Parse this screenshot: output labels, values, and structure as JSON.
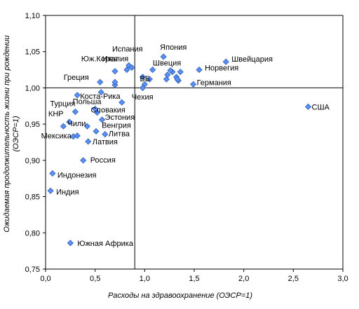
{
  "chart_data": {
    "type": "scatter",
    "xlabel": "Расходы на здравоохранение (ОЭСР=1)",
    "ylabel": "Ожидаемая продолжительность жизни при рождении (ОЭСР=1)",
    "xlim": [
      0.0,
      3.0
    ],
    "ylim": [
      0.75,
      1.1
    ],
    "x_ticks": [
      "0,0",
      "0,5",
      "1,0",
      "1,5",
      "2,0",
      "2,5",
      "3,0"
    ],
    "y_ticks": [
      "0,75",
      "0,80",
      "0,85",
      "0,90",
      "0,95",
      "1,00",
      "1,05",
      "1,10"
    ],
    "reference_lines": {
      "x": 0.9,
      "y": 1.0
    },
    "grid": false,
    "marker_color": "#5b8ff9",
    "marker_stroke": "#2f5fb0",
    "points": [
      {
        "x": 2.65,
        "y": 0.974,
        "label": "США"
      },
      {
        "x": 1.82,
        "y": 1.036,
        "label": "Швейцария"
      },
      {
        "x": 1.55,
        "y": 1.025,
        "label": "Норвегия"
      },
      {
        "x": 1.49,
        "y": 1.005,
        "label": "Германия"
      },
      {
        "x": 1.19,
        "y": 1.043,
        "label": "Япония"
      },
      {
        "x": 1.28,
        "y": 1.022,
        "label": "Швеция"
      },
      {
        "x": 1.05,
        "y": 1.012,
        "label": "ВБ"
      },
      {
        "x": 0.84,
        "y": 1.031,
        "label": "Италия"
      },
      {
        "x": 0.87,
        "y": 1.028,
        "label": "Испания"
      },
      {
        "x": 0.82,
        "y": 1.025,
        "label": "Юж.Корея"
      },
      {
        "x": 0.55,
        "y": 1.008,
        "label": "Греция"
      },
      {
        "x": 0.32,
        "y": 0.99,
        "label": "Коста-Рика"
      },
      {
        "x": 0.3,
        "y": 0.967,
        "label": "Турция"
      },
      {
        "x": 0.5,
        "y": 0.971,
        "label": "Польша"
      },
      {
        "x": 0.52,
        "y": 0.966,
        "label": "Словакия"
      },
      {
        "x": 0.57,
        "y": 0.956,
        "label": "Эстония"
      },
      {
        "x": 0.77,
        "y": 0.98,
        "label": "Чехия"
      },
      {
        "x": 0.24,
        "y": 0.953,
        "label": "КНР"
      },
      {
        "x": 0.51,
        "y": 0.94,
        "label": "Венгрия"
      },
      {
        "x": 0.42,
        "y": 0.947,
        "label": "Чили"
      },
      {
        "x": 0.6,
        "y": 0.936,
        "label": "Литва"
      },
      {
        "x": 0.28,
        "y": 0.933,
        "label": "Мексика"
      },
      {
        "x": 0.43,
        "y": 0.926,
        "label": "Латвия"
      },
      {
        "x": 0.38,
        "y": 0.9,
        "label": "Россия"
      },
      {
        "x": 0.07,
        "y": 0.882,
        "label": "Индонезия"
      },
      {
        "x": 0.05,
        "y": 0.858,
        "label": "Индия"
      },
      {
        "x": 0.25,
        "y": 0.786,
        "label": "Южная Африка"
      },
      {
        "x": 0.18,
        "y": 0.947,
        "label": ""
      },
      {
        "x": 0.32,
        "y": 0.934,
        "label": ""
      },
      {
        "x": 0.56,
        "y": 0.994,
        "label": ""
      },
      {
        "x": 0.7,
        "y": 1.004,
        "label": ""
      },
      {
        "x": 0.7,
        "y": 1.008,
        "label": ""
      },
      {
        "x": 0.7,
        "y": 1.023,
        "label": ""
      },
      {
        "x": 0.98,
        "y": 1.0,
        "label": ""
      },
      {
        "x": 1.0,
        "y": 1.005,
        "label": ""
      },
      {
        "x": 1.08,
        "y": 1.025,
        "label": ""
      },
      {
        "x": 0.98,
        "y": 1.015,
        "label": ""
      },
      {
        "x": 1.22,
        "y": 1.012,
        "label": ""
      },
      {
        "x": 1.23,
        "y": 1.018,
        "label": ""
      },
      {
        "x": 1.26,
        "y": 1.024,
        "label": ""
      },
      {
        "x": 1.32,
        "y": 1.015,
        "label": ""
      },
      {
        "x": 1.34,
        "y": 1.01,
        "label": ""
      },
      {
        "x": 1.36,
        "y": 1.022,
        "label": ""
      },
      {
        "x": 1.33,
        "y": 1.012,
        "label": ""
      }
    ]
  }
}
